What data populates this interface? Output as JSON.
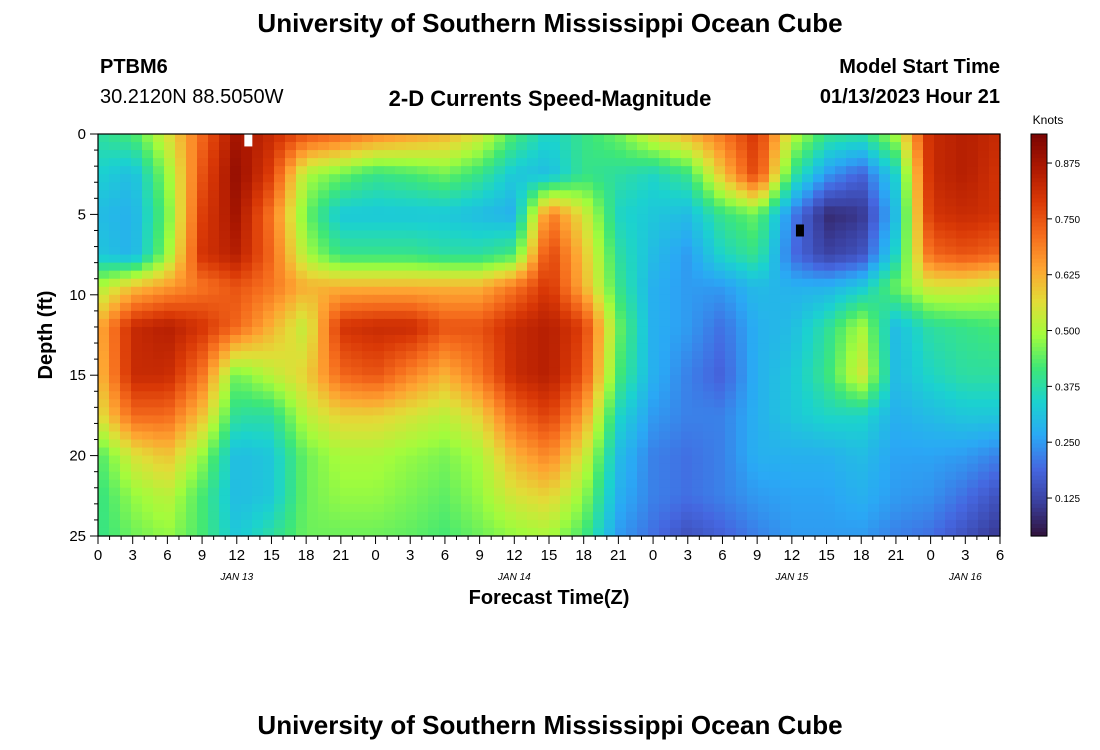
{
  "header": {
    "title": "University of Southern Mississippi Ocean Cube",
    "station": "PTBM6",
    "coordinates": "30.2120N  88.5050W",
    "product": "2-D Currents Speed-Magnitude",
    "model_start_label": "Model Start Time",
    "model_start_value": "01/13/2023 Hour 21"
  },
  "footer": {
    "title": "University of Southern Mississippi Ocean Cube"
  },
  "colors": {
    "scale": [
      "#30123b",
      "#3a3f9e",
      "#4567e0",
      "#2aa8f5",
      "#1bd2cf",
      "#3ee777",
      "#a2fc3c",
      "#e2dc37",
      "#fea331",
      "#f56b1c",
      "#d93806",
      "#ac1801",
      "#7a0403"
    ]
  },
  "chart_data": {
    "type": "heatmap",
    "xlabel": "Forecast Time(Z)",
    "ylabel": "Depth (ft)",
    "colorbar_label": "Knots",
    "x_range_hours": [
      0,
      78
    ],
    "x_tick_labels": [
      "0",
      "3",
      "6",
      "9",
      "12",
      "15",
      "18",
      "21",
      "0",
      "3",
      "6",
      "9",
      "12",
      "15",
      "18",
      "21",
      "0",
      "3",
      "6",
      "9",
      "12",
      "15",
      "18",
      "21",
      "0",
      "3",
      "6"
    ],
    "date_labels": [
      {
        "label": "JAN 13",
        "hour": 12
      },
      {
        "label": "JAN 14",
        "hour": 36
      },
      {
        "label": "JAN 15",
        "hour": 60
      },
      {
        "label": "JAN 16",
        "hour": 75
      }
    ],
    "y_range": [
      0,
      25
    ],
    "y_ticks": [
      0,
      5,
      10,
      15,
      20,
      25
    ],
    "colorbar_range": [
      0.04,
      0.94
    ],
    "colorbar_ticks": [
      "0.125",
      "0.250",
      "0.375",
      "0.500",
      "0.625",
      "0.750",
      "0.875"
    ],
    "colorbar_tick_values": [
      0.125,
      0.25,
      0.375,
      0.5,
      0.625,
      0.75,
      0.875
    ],
    "hours": [
      0,
      3,
      6,
      9,
      12,
      15,
      18,
      21,
      24,
      27,
      30,
      33,
      36,
      39,
      42,
      45,
      48,
      51,
      54,
      57,
      60,
      63,
      66,
      69,
      72,
      75,
      78
    ],
    "depths": [
      0,
      2.5,
      5,
      7.5,
      9.5,
      12,
      15,
      17.5,
      20,
      22.5,
      25
    ],
    "values": [
      [
        0.38,
        0.42,
        0.55,
        0.72,
        0.88,
        0.82,
        0.75,
        0.72,
        0.68,
        0.65,
        0.62,
        0.55,
        0.42,
        0.34,
        0.4,
        0.45,
        0.55,
        0.62,
        0.7,
        0.8,
        0.52,
        0.4,
        0.38,
        0.5,
        0.82,
        0.85,
        0.82
      ],
      [
        0.34,
        0.3,
        0.48,
        0.75,
        0.9,
        0.78,
        0.5,
        0.45,
        0.4,
        0.42,
        0.45,
        0.4,
        0.32,
        0.3,
        0.4,
        0.38,
        0.35,
        0.4,
        0.6,
        0.78,
        0.4,
        0.25,
        0.18,
        0.34,
        0.82,
        0.85,
        0.8
      ],
      [
        0.3,
        0.28,
        0.45,
        0.78,
        0.88,
        0.7,
        0.45,
        0.32,
        0.32,
        0.32,
        0.32,
        0.3,
        0.28,
        0.7,
        0.55,
        0.35,
        0.32,
        0.3,
        0.4,
        0.45,
        0.22,
        0.08,
        0.1,
        0.3,
        0.8,
        0.82,
        0.8
      ],
      [
        0.32,
        0.28,
        0.48,
        0.8,
        0.85,
        0.72,
        0.5,
        0.4,
        0.4,
        0.4,
        0.38,
        0.38,
        0.42,
        0.78,
        0.6,
        0.38,
        0.3,
        0.25,
        0.35,
        0.4,
        0.2,
        0.12,
        0.15,
        0.35,
        0.72,
        0.75,
        0.72
      ],
      [
        0.5,
        0.6,
        0.65,
        0.7,
        0.75,
        0.7,
        0.62,
        0.62,
        0.62,
        0.62,
        0.62,
        0.62,
        0.7,
        0.8,
        0.62,
        0.4,
        0.28,
        0.25,
        0.25,
        0.3,
        0.28,
        0.28,
        0.32,
        0.45,
        0.55,
        0.55,
        0.52
      ],
      [
        0.62,
        0.82,
        0.85,
        0.8,
        0.72,
        0.62,
        0.52,
        0.8,
        0.82,
        0.82,
        0.75,
        0.75,
        0.82,
        0.85,
        0.78,
        0.45,
        0.28,
        0.25,
        0.2,
        0.28,
        0.3,
        0.38,
        0.5,
        0.3,
        0.38,
        0.4,
        0.42
      ],
      [
        0.6,
        0.82,
        0.82,
        0.7,
        0.45,
        0.52,
        0.58,
        0.72,
        0.75,
        0.68,
        0.62,
        0.7,
        0.82,
        0.85,
        0.75,
        0.42,
        0.28,
        0.22,
        0.18,
        0.28,
        0.32,
        0.4,
        0.55,
        0.3,
        0.35,
        0.38,
        0.38
      ],
      [
        0.55,
        0.72,
        0.72,
        0.6,
        0.38,
        0.38,
        0.52,
        0.58,
        0.58,
        0.55,
        0.52,
        0.58,
        0.72,
        0.78,
        0.65,
        0.35,
        0.25,
        0.22,
        0.22,
        0.28,
        0.32,
        0.35,
        0.35,
        0.28,
        0.3,
        0.32,
        0.32
      ],
      [
        0.42,
        0.55,
        0.6,
        0.48,
        0.3,
        0.32,
        0.45,
        0.5,
        0.5,
        0.48,
        0.46,
        0.5,
        0.62,
        0.68,
        0.55,
        0.3,
        0.22,
        0.2,
        0.22,
        0.28,
        0.28,
        0.28,
        0.3,
        0.26,
        0.26,
        0.25,
        0.22
      ],
      [
        0.4,
        0.48,
        0.52,
        0.42,
        0.3,
        0.32,
        0.45,
        0.48,
        0.48,
        0.46,
        0.44,
        0.48,
        0.55,
        0.58,
        0.48,
        0.28,
        0.22,
        0.2,
        0.22,
        0.25,
        0.26,
        0.26,
        0.28,
        0.25,
        0.24,
        0.2,
        0.15
      ],
      [
        0.4,
        0.45,
        0.48,
        0.42,
        0.32,
        0.38,
        0.45,
        0.45,
        0.45,
        0.44,
        0.42,
        0.45,
        0.48,
        0.5,
        0.42,
        0.25,
        0.2,
        0.15,
        0.18,
        0.22,
        0.25,
        0.25,
        0.25,
        0.22,
        0.2,
        0.15,
        0.1
      ]
    ],
    "markers": [
      {
        "hour": 13,
        "depth": 0.4,
        "color": "#ffffff"
      },
      {
        "hour": 60.7,
        "depth": 6.0,
        "color": "#000000"
      }
    ]
  }
}
